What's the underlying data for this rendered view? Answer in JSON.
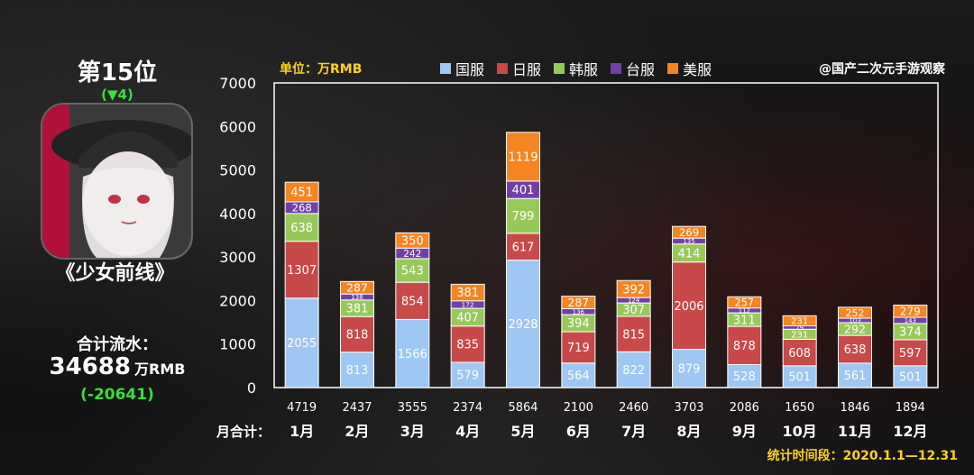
{
  "ranking": {
    "title": "第15位",
    "change": "(▼4)"
  },
  "game": {
    "title": "《少女前线》",
    "icon": "game-character-portrait-icon"
  },
  "total": {
    "label": "合计流水：",
    "value": "34688",
    "unit": "万RMB",
    "change": "(-20641)"
  },
  "header": {
    "unit_label": "单位：万RMB",
    "watermark": "@国产二次元手游观察"
  },
  "footer": {
    "period": "统计时间段：2020.1.1—12.31"
  },
  "colors": {
    "国服": "#9ec7f3",
    "日服": "#c94848",
    "韩服": "#97c95a",
    "台服": "#7140a6",
    "美服": "#f58520",
    "plot_border": "#ffffff",
    "accent_yellow": "#ffd21f",
    "accent_green": "#3ddc3d"
  },
  "chart_data": {
    "type": "bar",
    "stacked": true,
    "categories": [
      "1月",
      "2月",
      "3月",
      "4月",
      "5月",
      "6月",
      "7月",
      "8月",
      "9月",
      "10月",
      "11月",
      "12月"
    ],
    "series": [
      {
        "name": "国服",
        "values": [
          2055,
          813,
          1566,
          579,
          2928,
          564,
          822,
          879,
          528,
          501,
          561,
          501
        ]
      },
      {
        "name": "日服",
        "values": [
          1307,
          818,
          854,
          835,
          617,
          719,
          815,
          2006,
          878,
          608,
          638,
          597
        ]
      },
      {
        "name": "韩服",
        "values": [
          638,
          381,
          543,
          407,
          799,
          394,
          307,
          414,
          311,
          231,
          292,
          374
        ]
      },
      {
        "name": "台服",
        "values": [
          268,
          138,
          242,
          172,
          401,
          136,
          124,
          135,
          112,
          79,
          103,
          143
        ]
      },
      {
        "name": "美服",
        "values": [
          451,
          287,
          350,
          381,
          1119,
          287,
          392,
          269,
          257,
          231,
          252,
          279
        ]
      }
    ],
    "totals_label": "月合计：",
    "totals": [
      4719,
      2437,
      3555,
      2374,
      5864,
      2100,
      2460,
      3703,
      2086,
      1650,
      1846,
      1894
    ],
    "ylim": [
      0,
      7000
    ],
    "yticks": [
      0,
      1000,
      2000,
      3000,
      4000,
      5000,
      6000,
      7000
    ],
    "grid": false,
    "legend_position": "top"
  }
}
